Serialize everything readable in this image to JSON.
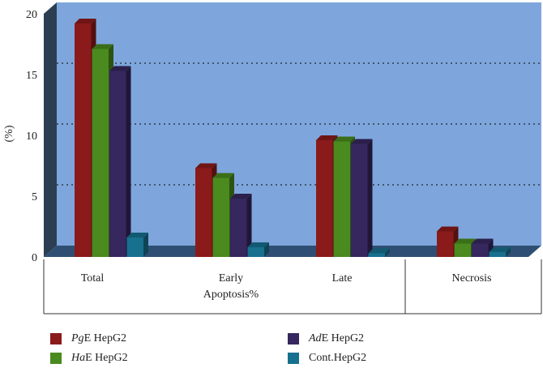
{
  "chart_data": {
    "type": "bar",
    "ylabel": "(%)",
    "ylim": [
      0,
      20
    ],
    "yticks": [
      0,
      5,
      10,
      15,
      20
    ],
    "grid": "dotted horizontal",
    "categories": [
      "Total",
      "Early Apoptosis%",
      "Late",
      "Necrosis"
    ],
    "category_lines": [
      [
        "Total"
      ],
      [
        "Early",
        "Apoptosis%"
      ],
      [
        "Late"
      ],
      [
        "Necrosis"
      ]
    ],
    "series": [
      {
        "name": "PgE HepG2",
        "name_prefix": "Pg",
        "name_suffix": "E HepG2",
        "color": "#8b1a1a",
        "values": [
          19.2,
          7.3,
          9.6,
          2.1
        ]
      },
      {
        "name": "HaE HepG2",
        "name_prefix": "Ha",
        "name_suffix": "E HepG2",
        "color": "#4a8a1e",
        "values": [
          17.1,
          6.5,
          9.5,
          1.1
        ]
      },
      {
        "name": "AdE HepG2",
        "name_prefix": "Ad",
        "name_suffix": "E HepG2",
        "color": "#36275e",
        "values": [
          15.3,
          4.8,
          9.3,
          1.1
        ]
      },
      {
        "name": "Cont.HepG2",
        "name_prefix": "",
        "name_suffix": "Cont.HepG2",
        "color": "#17708e",
        "values": [
          1.6,
          0.8,
          0.3,
          0.4
        ]
      }
    ],
    "legend_position": "bottom"
  }
}
